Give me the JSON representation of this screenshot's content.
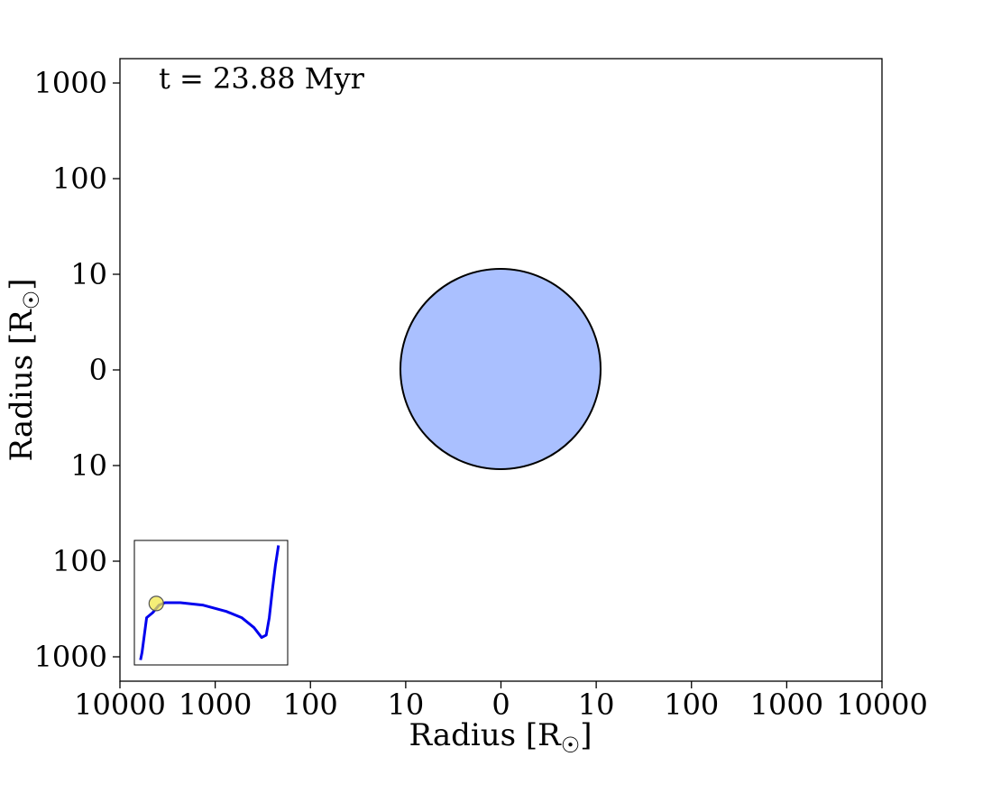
{
  "chart_data": {
    "type": "scatter",
    "annotation": "t = 23.88 Myr",
    "xlabel": "Radius [R",
    "ylabel": "Radius [R",
    "label_symbol": "☉",
    "label_close": "]",
    "x_scale": "symmetric-log",
    "y_scale": "symmetric-log",
    "x_ticks": [
      "10000",
      "1000",
      "100",
      "10",
      "0",
      "10",
      "100",
      "1000",
      "10000"
    ],
    "y_ticks": [
      "1000",
      "100",
      "10",
      "0",
      "10",
      "100",
      "1000"
    ],
    "xlim": [
      -10000,
      10000
    ],
    "ylim": [
      -1000,
      1000
    ],
    "grid": false,
    "star": {
      "radius": 11.2,
      "fill": "#aac0ff",
      "edge": "#000000"
    },
    "inset": {
      "type": "line",
      "description_track_color": "#0000ee",
      "marker_color": "#f2e84a",
      "track": [
        [
          0.04,
          0.96
        ],
        [
          0.05,
          0.9
        ],
        [
          0.08,
          0.62
        ],
        [
          0.12,
          0.58
        ],
        [
          0.16,
          0.52
        ],
        [
          0.2,
          0.5
        ],
        [
          0.3,
          0.5
        ],
        [
          0.45,
          0.52
        ],
        [
          0.6,
          0.57
        ],
        [
          0.7,
          0.62
        ],
        [
          0.78,
          0.7
        ],
        [
          0.83,
          0.78
        ],
        [
          0.86,
          0.76
        ],
        [
          0.88,
          0.62
        ],
        [
          0.9,
          0.4
        ],
        [
          0.92,
          0.2
        ],
        [
          0.94,
          0.04
        ]
      ],
      "marker": [
        0.14,
        0.51
      ]
    }
  }
}
